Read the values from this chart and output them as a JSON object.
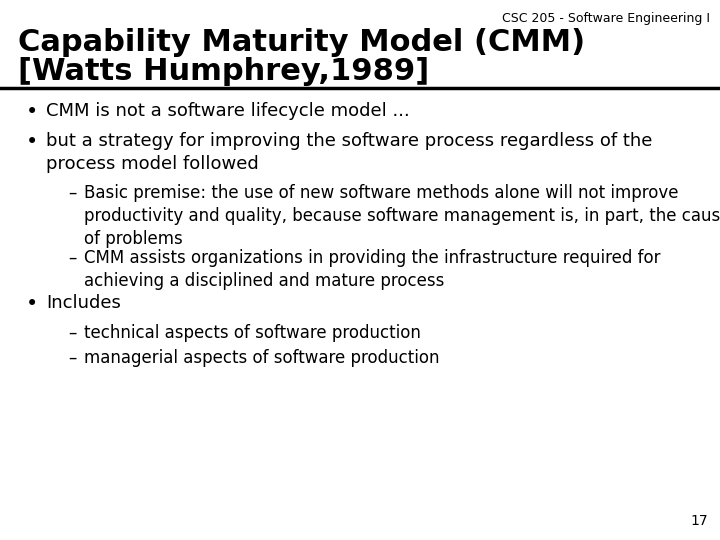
{
  "background_color": "#ffffff",
  "header_label": "CSC 205 - Software Engineering I",
  "title_line1": "Capability Maturity Model (CMM)",
  "title_line2": "[Watts Humphrey,1989]",
  "title_fontsize": 22,
  "title_color": "#000000",
  "header_fontsize": 9,
  "header_color": "#000000",
  "rule_color": "#000000",
  "page_number": "17",
  "page_number_fontsize": 10,
  "text_color": "#000000",
  "bullets": [
    {
      "level": 1,
      "text": "CMM is not a software lifecycle model ...",
      "lines": 1
    },
    {
      "level": 1,
      "text": "but a strategy for improving the software process regardless of the\nprocess model followed",
      "lines": 2
    },
    {
      "level": 2,
      "text": "Basic premise: the use of new software methods alone will not improve\nproductivity and quality, because software management is, in part, the cause\nof problems",
      "lines": 3
    },
    {
      "level": 2,
      "text": "CMM assists organizations in providing the infrastructure required for\nachieving a disciplined and mature process",
      "lines": 2
    },
    {
      "level": 1,
      "text": "Includes",
      "lines": 1
    },
    {
      "level": 2,
      "text": "technical aspects of software production",
      "lines": 1
    },
    {
      "level": 2,
      "text": "managerial aspects of software production",
      "lines": 1
    }
  ],
  "bullet_fontsize": 13,
  "sub_bullet_fontsize": 12,
  "font_family": "DejaVu Sans"
}
